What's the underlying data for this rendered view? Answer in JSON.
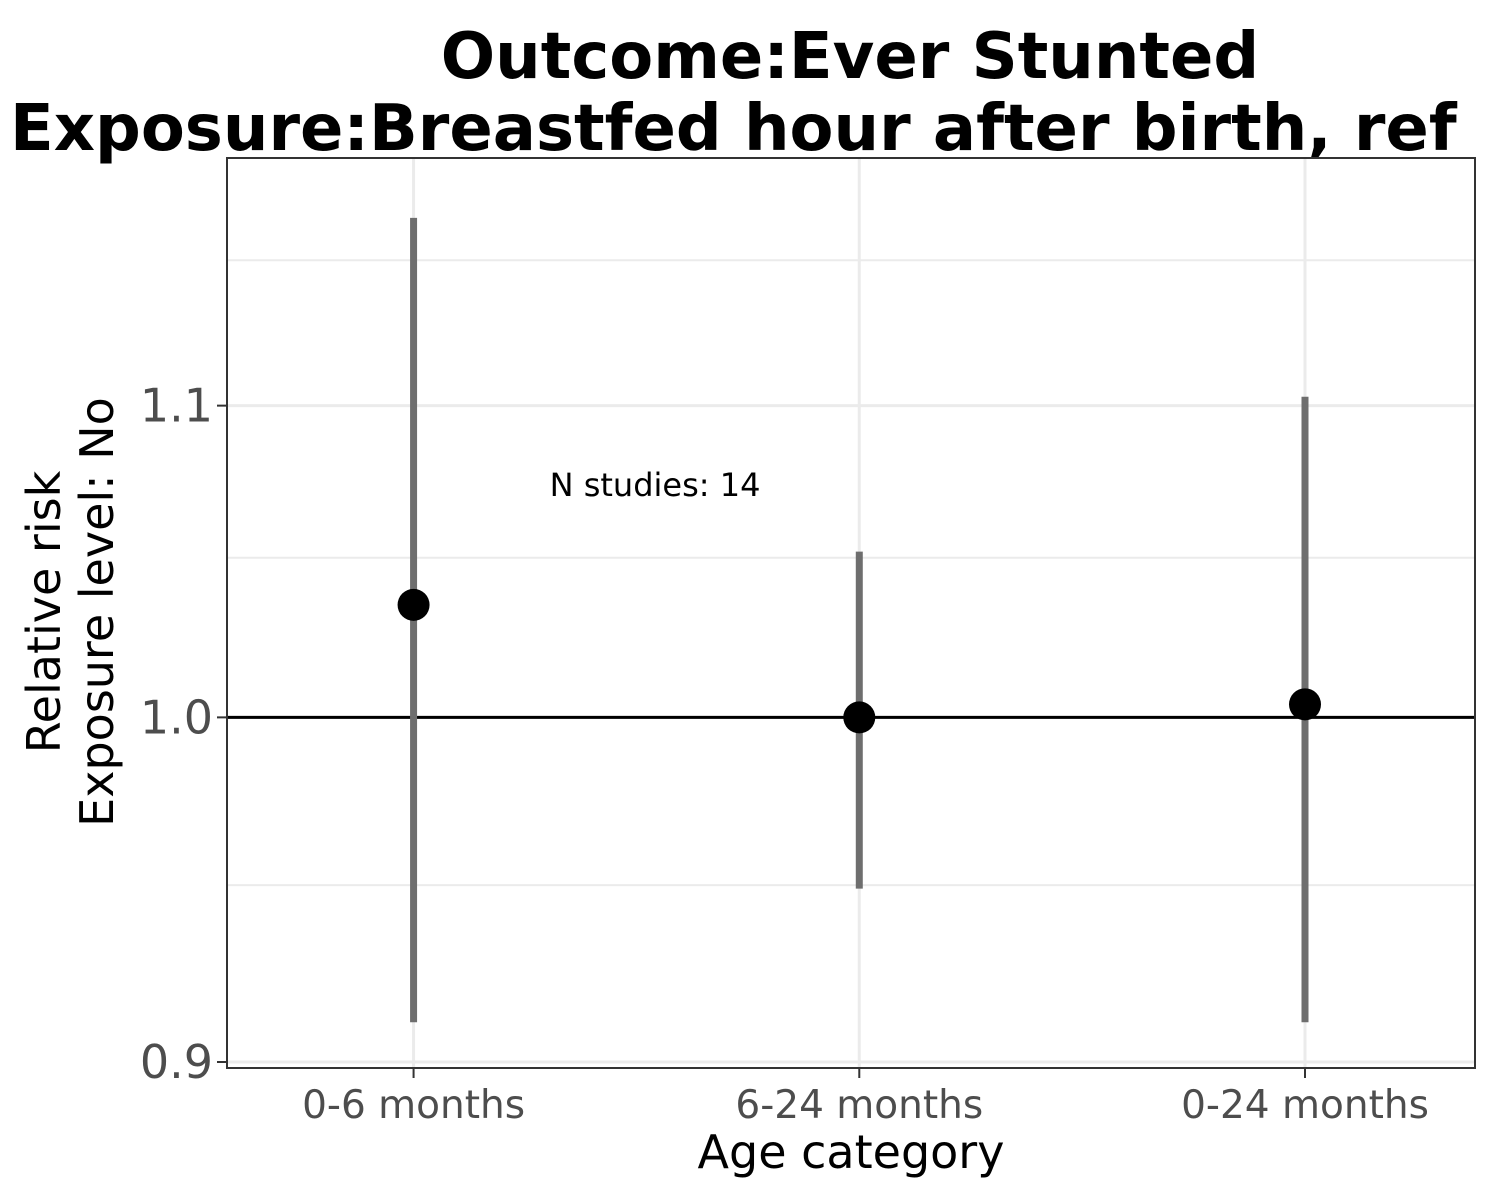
{
  "chart_data": {
    "type": "scatter",
    "title_line1": "Outcome:Ever Stunted",
    "title_line2": "Exposure:Breastfed hour after birth, ref",
    "xlabel": "Age category",
    "ylabel_line1": "Relative risk",
    "ylabel_line2": "Exposure level: No",
    "y_scale": "log",
    "ylim": [
      0.9,
      1.18
    ],
    "y_ticks": [
      0.9,
      1.0,
      1.1
    ],
    "y_tick_labels": [
      "0.9",
      "1.0",
      "1.1"
    ],
    "y_minor_gridlines": [
      0.95,
      1.05,
      1.15
    ],
    "reference_line": 1.0,
    "grid": true,
    "categories": [
      "0-6 months",
      "6-24 months",
      "0-24 months"
    ],
    "points": [
      {
        "category": "0-6 months",
        "estimate": 1.035,
        "ci_lower": 0.911,
        "ci_upper": 1.165
      },
      {
        "category": "6-24 months",
        "estimate": 1.0,
        "ci_lower": 0.949,
        "ci_upper": 1.052
      },
      {
        "category": "0-24 months",
        "estimate": 1.004,
        "ci_lower": 0.911,
        "ci_upper": 1.103
      }
    ],
    "annotation": "N studies: 14",
    "colors": {
      "point": "#000000",
      "errorbar": "#6e6e6e",
      "grid": "#ebebeb",
      "panel_border": "#333333",
      "reference_line": "#000000"
    }
  }
}
